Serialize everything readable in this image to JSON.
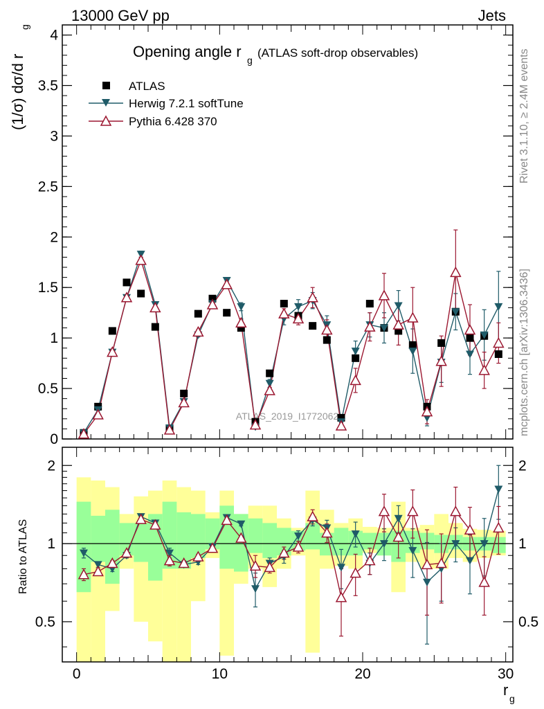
{
  "header": {
    "energy_label": "13000 GeV pp",
    "process_label": "Jets"
  },
  "side_labels": {
    "rivet": "Rivet 3.1.10, ≥ 2.4M events",
    "mcplots": "mcplots.cern.ch [arXiv:1306.3436]"
  },
  "watermark": "ATLAS_2019_I1772062",
  "colors": {
    "atlas": "#000000",
    "herwig": "#1f5b68",
    "pythia": "#9b1730",
    "band_inner": "#99ff99",
    "band_outer": "#ffff99"
  },
  "chart_data": [
    {
      "type": "scatter",
      "title": "Opening angle r",
      "title_subscript": "g",
      "title_suffix": "(ATLAS soft-drop observables)",
      "ylabel": "(1/σ) dσ/d r",
      "ylabel_subscript": "g",
      "xlim": [
        -1,
        30.5
      ],
      "ylim": [
        0,
        4.1
      ],
      "yticks": [
        0,
        0.5,
        1,
        1.5,
        2,
        2.5,
        3,
        3.5,
        4
      ],
      "ytick_labels": [
        "0",
        "0.5",
        "1",
        "1.5",
        "2",
        "2.5",
        "3",
        "3.5",
        "4"
      ],
      "legend": {
        "position": "top-left",
        "entries": [
          "ATLAS",
          "Herwig 7.2.1 softTune",
          "Pythia 6.428 370"
        ]
      },
      "x": [
        0.5,
        1.5,
        2.5,
        3.5,
        4.5,
        5.5,
        6.5,
        7.5,
        8.5,
        9.5,
        10.5,
        11.5,
        12.5,
        13.5,
        14.5,
        15.5,
        16.5,
        17.5,
        18.5,
        19.5,
        20.5,
        21.5,
        22.5,
        23.5,
        24.5,
        25.5,
        26.5,
        27.5,
        28.5,
        29.5
      ],
      "series": [
        {
          "name": "ATLAS",
          "values": [
            0.06,
            0.32,
            1.07,
            1.55,
            1.44,
            1.11,
            0.1,
            0.45,
            1.24,
            1.39,
            1.25,
            1.1,
            0.17,
            0.65,
            1.34,
            1.22,
            1.12,
            0.98,
            0.21,
            0.8,
            1.34,
            1.1,
            1.07,
            0.93,
            0.32,
            0.95,
            1.26,
            1.0,
            1.02,
            0.84
          ]
        },
        {
          "name": "Herwig 7.2.1 softTune",
          "values": [
            0.06,
            0.29,
            0.86,
            1.4,
            1.83,
            1.33,
            0.11,
            0.37,
            1.03,
            1.34,
            1.57,
            1.31,
            0.12,
            0.55,
            1.19,
            1.31,
            1.37,
            1.13,
            0.17,
            0.87,
            1.13,
            1.1,
            1.32,
            0.87,
            0.21,
            0.76,
            1.26,
            0.84,
            1.03,
            1.31
          ]
        },
        {
          "name": "Pythia 6.428 370",
          "values": [
            0.05,
            0.24,
            0.86,
            1.4,
            1.77,
            1.3,
            0.09,
            0.36,
            1.06,
            1.33,
            1.53,
            1.15,
            0.14,
            0.48,
            1.24,
            1.19,
            1.4,
            1.08,
            0.13,
            0.58,
            1.11,
            1.42,
            1.13,
            1.2,
            0.27,
            0.77,
            1.65,
            1.08,
            0.68,
            0.95
          ]
        }
      ],
      "errors": {
        "ATLAS": [
          0.01,
          0.02,
          0.02,
          0.02,
          0.02,
          0.02,
          0.01,
          0.02,
          0.02,
          0.02,
          0.02,
          0.02,
          0.01,
          0.02,
          0.02,
          0.02,
          0.02,
          0.02,
          0.01,
          0.02,
          0.02,
          0.02,
          0.02,
          0.02,
          0.01,
          0.02,
          0.02,
          0.02,
          0.02,
          0.02
        ],
        "Herwig 7.2.1 softTune": [
          0.005,
          0.01,
          0.02,
          0.02,
          0.03,
          0.03,
          0.01,
          0.01,
          0.02,
          0.03,
          0.03,
          0.04,
          0.01,
          0.04,
          0.06,
          0.07,
          0.08,
          0.09,
          0.03,
          0.1,
          0.12,
          0.15,
          0.15,
          0.22,
          0.08,
          0.2,
          0.18,
          0.2,
          0.25,
          0.35
        ],
        "Pythia 6.428 370": [
          0.005,
          0.01,
          0.02,
          0.02,
          0.03,
          0.03,
          0.01,
          0.01,
          0.02,
          0.03,
          0.03,
          0.04,
          0.01,
          0.03,
          0.05,
          0.06,
          0.1,
          0.1,
          0.03,
          0.12,
          0.14,
          0.22,
          0.2,
          0.3,
          0.12,
          0.25,
          0.42,
          0.25,
          0.18,
          0.2
        ]
      }
    },
    {
      "type": "scatter",
      "ylabel": "Ratio to ATLAS",
      "xlabel": "r",
      "xlabel_subscript": "g",
      "scale": "log",
      "xlim": [
        -1,
        30.5
      ],
      "ylim": [
        0.35,
        2.35
      ],
      "yticks": [
        0.5,
        1,
        2
      ],
      "ytick_labels": [
        "0.5",
        "1",
        "2"
      ],
      "xticks": [
        0,
        10,
        20,
        30
      ],
      "xtick_labels": [
        "0",
        "10",
        "20",
        "30"
      ],
      "reference_line": 1,
      "bands": {
        "inner": [
          [
            0.65,
            1.45
          ],
          [
            0.85,
            1.28
          ],
          [
            0.7,
            1.35
          ],
          [
            0.9,
            1.2
          ],
          [
            0.85,
            1.2
          ],
          [
            0.72,
            1.3
          ],
          [
            0.8,
            1.45
          ],
          [
            0.8,
            1.32
          ],
          [
            0.88,
            1.3
          ],
          [
            0.95,
            1.25
          ],
          [
            0.8,
            1.4
          ],
          [
            0.78,
            1.3
          ],
          [
            0.92,
            1.25
          ],
          [
            0.88,
            1.2
          ],
          [
            0.9,
            1.15
          ],
          [
            0.94,
            1.12
          ],
          [
            0.95,
            1.2
          ],
          [
            0.9,
            1.1
          ],
          [
            0.9,
            1.15
          ],
          [
            0.9,
            1.12
          ],
          [
            0.95,
            1.1
          ],
          [
            0.9,
            1.1
          ],
          [
            0.85,
            1.12
          ],
          [
            0.92,
            1.12
          ],
          [
            0.95,
            1.1
          ],
          [
            0.92,
            1.08
          ],
          [
            0.95,
            1.08
          ],
          [
            0.94,
            1.06
          ],
          [
            0.94,
            1.06
          ],
          [
            0.92,
            1.06
          ]
        ],
        "outer": [
          [
            0.35,
            1.8
          ],
          [
            0.35,
            1.75
          ],
          [
            0.55,
            1.65
          ],
          [
            0.8,
            1.3
          ],
          [
            0.5,
            1.52
          ],
          [
            0.42,
            1.6
          ],
          [
            0.35,
            1.75
          ],
          [
            0.35,
            1.65
          ],
          [
            0.6,
            1.6
          ],
          [
            0.88,
            1.32
          ],
          [
            0.37,
            1.6
          ],
          [
            0.7,
            1.3
          ],
          [
            0.8,
            1.4
          ],
          [
            0.68,
            1.4
          ],
          [
            0.8,
            1.25
          ],
          [
            0.9,
            1.15
          ],
          [
            0.38,
            1.6
          ],
          [
            0.8,
            1.35
          ],
          [
            0.82,
            1.2
          ],
          [
            0.8,
            1.25
          ],
          [
            0.92,
            1.16
          ],
          [
            0.9,
            1.15
          ],
          [
            0.65,
            1.45
          ],
          [
            0.85,
            1.15
          ],
          [
            0.8,
            1.18
          ],
          [
            0.8,
            1.3
          ],
          [
            0.88,
            1.2
          ],
          [
            0.85,
            1.14
          ],
          [
            0.88,
            1.13
          ],
          [
            0.9,
            1.12
          ]
        ]
      },
      "series": [
        {
          "name": "Herwig 7.2.1 softTune",
          "values": [
            0.92,
            0.83,
            0.8,
            0.9,
            1.27,
            1.2,
            0.92,
            0.83,
            0.85,
            0.97,
            1.26,
            1.19,
            0.67,
            0.84,
            0.89,
            1.07,
            1.23,
            1.15,
            0.81,
            1.09,
            0.84,
            1.0,
            1.25,
            0.94,
            0.71,
            0.8,
            1.0,
            0.86,
            1.0,
            1.62
          ]
        },
        {
          "name": "Pythia 6.428 370",
          "values": [
            0.76,
            0.78,
            0.84,
            0.92,
            1.24,
            1.18,
            0.86,
            0.84,
            0.89,
            0.96,
            1.23,
            1.05,
            0.82,
            0.81,
            0.92,
            0.97,
            1.27,
            1.1,
            0.62,
            0.77,
            0.86,
            1.33,
            1.06,
            1.33,
            0.83,
            0.84,
            1.33,
            1.13,
            0.71,
            1.15
          ]
        }
      ],
      "errors": {
        "Herwig 7.2.1 softTune": [
          0.04,
          0.02,
          0.02,
          0.02,
          0.02,
          0.02,
          0.04,
          0.02,
          0.02,
          0.02,
          0.02,
          0.02,
          0.1,
          0.04,
          0.05,
          0.05,
          0.06,
          0.08,
          0.14,
          0.12,
          0.08,
          0.14,
          0.15,
          0.2,
          0.3,
          0.2,
          0.15,
          0.22,
          0.25,
          0.38
        ],
        "Pythia 6.428 370": [
          0.04,
          0.02,
          0.02,
          0.02,
          0.02,
          0.02,
          0.04,
          0.02,
          0.02,
          0.02,
          0.02,
          0.02,
          0.08,
          0.04,
          0.05,
          0.05,
          0.08,
          0.09,
          0.18,
          0.14,
          0.1,
          0.22,
          0.18,
          0.28,
          0.3,
          0.25,
          0.32,
          0.25,
          0.18,
          0.24
        ]
      }
    }
  ]
}
